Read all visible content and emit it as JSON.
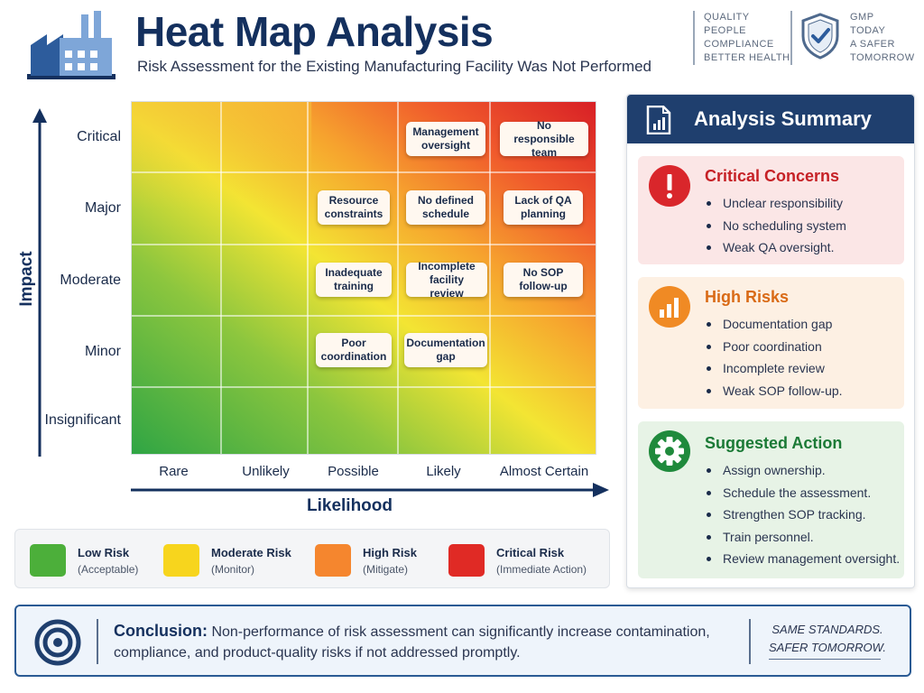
{
  "header": {
    "title": "Heat Map Analysis",
    "subtitle": "Risk Assessment for the Existing Manufacturing Facility Was Not Performed",
    "brand_left": [
      "QUALITY",
      "PEOPLE",
      "COMPLIANCE",
      "BETTER HEALTH"
    ],
    "brand_right": [
      "GMP",
      "TODAY",
      "A SAFER",
      "TOMORROW"
    ]
  },
  "heatmap": {
    "y_axis_label": "Impact",
    "x_axis_label": "Likelihood",
    "rows": [
      "Critical",
      "Major",
      "Moderate",
      "Minor",
      "Insignificant"
    ],
    "columns": [
      "Rare",
      "Unlikely",
      "Possible",
      "Likely",
      "Almost Certain"
    ],
    "risks": [
      {
        "text": "Management oversight",
        "row": 0,
        "col": 3
      },
      {
        "text": "No responsible team",
        "row": 0,
        "col": 4
      },
      {
        "text": "Resource constraints",
        "row": 1,
        "col": 2
      },
      {
        "text": "No defined schedule",
        "row": 1,
        "col": 3
      },
      {
        "text": "Lack of QA planning",
        "row": 1,
        "col": 4
      },
      {
        "text": "Inadequate training",
        "row": 2,
        "col": 2
      },
      {
        "text": "Incomplete facility review",
        "row": 2,
        "col": 3
      },
      {
        "text": "No SOP follow-up",
        "row": 2,
        "col": 4
      },
      {
        "text": "Poor coordination",
        "row": 3,
        "col": 2
      },
      {
        "text": "Documentation gap",
        "row": 3,
        "col": 3
      }
    ]
  },
  "legend": [
    {
      "title": "Low Risk",
      "sub": "(Acceptable)",
      "color": "#4caf3a"
    },
    {
      "title": "Moderate Risk",
      "sub": "(Monitor)",
      "color": "#f7d51d"
    },
    {
      "title": "High Risk",
      "sub": "(Mitigate)",
      "color": "#f5862e"
    },
    {
      "title": "Critical Risk",
      "sub": "(Immediate Action)",
      "color": "#e02a25"
    }
  ],
  "summary": {
    "title": "Analysis Summary",
    "critical": {
      "title": "Critical Concerns",
      "items": [
        "Unclear responsibility",
        "No scheduling system",
        "Weak QA oversight."
      ]
    },
    "high": {
      "title": "High Risks",
      "items": [
        "Documentation gap",
        "Poor coordination",
        "Incomplete review",
        "Weak SOP follow-up."
      ]
    },
    "action": {
      "title": "Suggested Action",
      "items": [
        "Assign ownership.",
        "Schedule the assessment.",
        "Strengthen SOP tracking.",
        "Train personnel.",
        "Review management oversight."
      ]
    }
  },
  "conclusion": {
    "label": "Conclusion:",
    "text": "Non-performance of risk assessment can significantly increase contamination, compliance, and product-quality risks if not addressed promptly.",
    "tagline_1": "SAME STANDARDS.",
    "tagline_2": "SAFER TOMORROW."
  }
}
